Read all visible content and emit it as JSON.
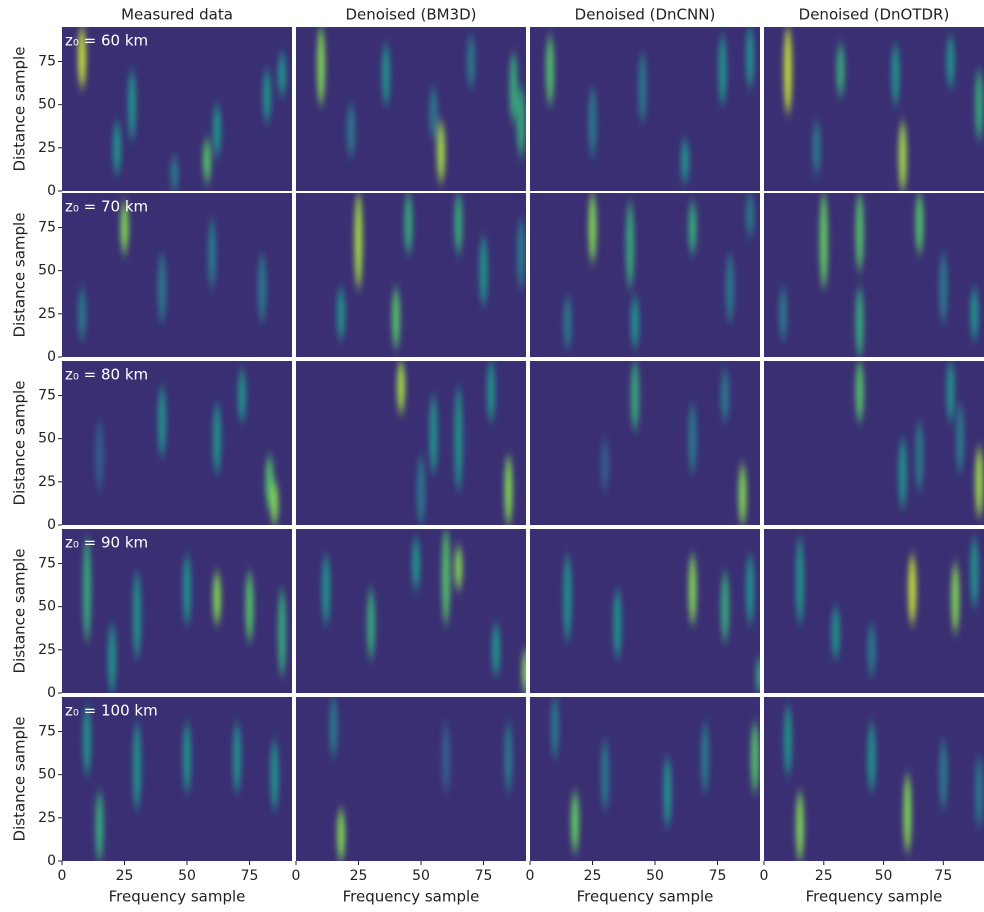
{
  "chart_data": {
    "type": "heatmap",
    "column_titles": [
      "Measured data",
      "Denoised (BM3D)",
      "Denoised (DnCNN)",
      "Denoised (DnOTDR)"
    ],
    "row_labels": [
      "z₀ = 60 km",
      "z₀ = 70 km",
      "z₀ = 80 km",
      "z₀ = 90 km",
      "z₀ = 100 km"
    ],
    "xlabel": "Frequency sample",
    "ylabel": "Distance sample",
    "xlim": [
      0,
      92
    ],
    "ylim": [
      0,
      95
    ],
    "xticks": [
      0,
      25,
      50,
      75
    ],
    "yticks": [
      0,
      25,
      50,
      75
    ],
    "colormap": "viridis",
    "panels": [
      [
        [
          [
            8,
            60,
            95,
            0.9
          ],
          [
            28,
            30,
            70,
            0.5
          ],
          [
            22,
            10,
            40,
            0.5
          ],
          [
            58,
            5,
            30,
            0.7
          ],
          [
            62,
            20,
            50,
            0.5
          ],
          [
            82,
            40,
            70,
            0.5
          ],
          [
            88,
            55,
            80,
            0.5
          ],
          [
            45,
            0,
            20,
            0.4
          ]
        ],
        [
          [
            10,
            50,
            95,
            0.8
          ],
          [
            22,
            20,
            50,
            0.4
          ],
          [
            36,
            50,
            85,
            0.5
          ],
          [
            55,
            30,
            60,
            0.4
          ],
          [
            58,
            5,
            40,
            0.85
          ],
          [
            87,
            40,
            80,
            0.6
          ],
          [
            90,
            20,
            60,
            0.6
          ],
          [
            70,
            60,
            90,
            0.4
          ]
        ],
        [
          [
            8,
            50,
            90,
            0.7
          ],
          [
            25,
            20,
            60,
            0.4
          ],
          [
            45,
            40,
            80,
            0.4
          ],
          [
            62,
            5,
            30,
            0.5
          ],
          [
            77,
            50,
            90,
            0.5
          ],
          [
            88,
            60,
            95,
            0.5
          ]
        ],
        [
          [
            10,
            45,
            95,
            0.9
          ],
          [
            32,
            55,
            85,
            0.6
          ],
          [
            22,
            10,
            40,
            0.4
          ],
          [
            55,
            50,
            85,
            0.5
          ],
          [
            58,
            0,
            40,
            0.85
          ],
          [
            78,
            60,
            90,
            0.5
          ],
          [
            90,
            30,
            70,
            0.6
          ]
        ]
      ],
      [
        [
          [
            25,
            60,
            90,
            0.8
          ],
          [
            40,
            20,
            60,
            0.4
          ],
          [
            60,
            40,
            80,
            0.4
          ],
          [
            8,
            10,
            40,
            0.4
          ],
          [
            80,
            20,
            60,
            0.4
          ]
        ],
        [
          [
            25,
            40,
            95,
            0.85
          ],
          [
            40,
            5,
            40,
            0.7
          ],
          [
            18,
            10,
            40,
            0.5
          ],
          [
            45,
            60,
            95,
            0.6
          ],
          [
            65,
            60,
            95,
            0.6
          ],
          [
            75,
            30,
            70,
            0.5
          ],
          [
            90,
            40,
            80,
            0.4
          ]
        ],
        [
          [
            25,
            55,
            95,
            0.8
          ],
          [
            40,
            40,
            90,
            0.6
          ],
          [
            15,
            5,
            35,
            0.4
          ],
          [
            42,
            5,
            35,
            0.5
          ],
          [
            65,
            60,
            90,
            0.6
          ],
          [
            80,
            20,
            60,
            0.4
          ],
          [
            88,
            70,
            95,
            0.4
          ]
        ],
        [
          [
            25,
            40,
            95,
            0.75
          ],
          [
            40,
            50,
            95,
            0.7
          ],
          [
            40,
            0,
            40,
            0.6
          ],
          [
            65,
            60,
            95,
            0.7
          ],
          [
            75,
            20,
            60,
            0.4
          ],
          [
            88,
            10,
            40,
            0.5
          ],
          [
            8,
            10,
            40,
            0.4
          ]
        ]
      ],
      [
        [
          [
            40,
            40,
            80,
            0.5
          ],
          [
            62,
            30,
            70,
            0.5
          ],
          [
            72,
            60,
            90,
            0.5
          ],
          [
            83,
            10,
            40,
            0.7
          ],
          [
            85,
            0,
            25,
            0.8
          ],
          [
            15,
            20,
            60,
            0.3
          ]
        ],
        [
          [
            42,
            65,
            95,
            0.85
          ],
          [
            55,
            30,
            75,
            0.5
          ],
          [
            65,
            20,
            80,
            0.5
          ],
          [
            78,
            60,
            95,
            0.5
          ],
          [
            85,
            0,
            40,
            0.8
          ],
          [
            50,
            0,
            40,
            0.4
          ]
        ],
        [
          [
            42,
            55,
            95,
            0.6
          ],
          [
            65,
            30,
            70,
            0.4
          ],
          [
            78,
            60,
            90,
            0.4
          ],
          [
            85,
            0,
            35,
            0.8
          ],
          [
            30,
            20,
            50,
            0.3
          ]
        ],
        [
          [
            40,
            60,
            95,
            0.7
          ],
          [
            58,
            10,
            50,
            0.5
          ],
          [
            78,
            60,
            95,
            0.5
          ],
          [
            82,
            30,
            70,
            0.4
          ],
          [
            90,
            5,
            45,
            0.85
          ],
          [
            65,
            20,
            60,
            0.4
          ]
        ]
      ],
      [
        [
          [
            10,
            30,
            90,
            0.6
          ],
          [
            30,
            20,
            70,
            0.5
          ],
          [
            50,
            40,
            80,
            0.5
          ],
          [
            62,
            40,
            70,
            0.8
          ],
          [
            75,
            30,
            70,
            0.7
          ],
          [
            88,
            10,
            60,
            0.6
          ],
          [
            20,
            0,
            40,
            0.5
          ]
        ],
        [
          [
            12,
            40,
            80,
            0.5
          ],
          [
            30,
            20,
            60,
            0.6
          ],
          [
            60,
            40,
            95,
            0.7
          ],
          [
            65,
            60,
            85,
            0.8
          ],
          [
            80,
            10,
            40,
            0.5
          ],
          [
            92,
            0,
            25,
            0.8
          ],
          [
            48,
            60,
            90,
            0.5
          ]
        ],
        [
          [
            15,
            30,
            80,
            0.5
          ],
          [
            35,
            20,
            60,
            0.5
          ],
          [
            65,
            40,
            80,
            0.8
          ],
          [
            78,
            30,
            70,
            0.6
          ],
          [
            88,
            40,
            80,
            0.5
          ],
          [
            92,
            0,
            20,
            0.6
          ]
        ],
        [
          [
            15,
            40,
            90,
            0.5
          ],
          [
            30,
            20,
            50,
            0.5
          ],
          [
            62,
            40,
            80,
            0.9
          ],
          [
            80,
            35,
            75,
            0.8
          ],
          [
            88,
            50,
            90,
            0.5
          ],
          [
            45,
            10,
            40,
            0.4
          ]
        ]
      ],
      [
        [
          [
            15,
            0,
            40,
            0.6
          ],
          [
            30,
            30,
            80,
            0.5
          ],
          [
            50,
            40,
            80,
            0.5
          ],
          [
            70,
            40,
            80,
            0.5
          ],
          [
            85,
            30,
            70,
            0.5
          ],
          [
            10,
            50,
            90,
            0.5
          ]
        ],
        [
          [
            18,
            0,
            30,
            0.8
          ],
          [
            15,
            60,
            95,
            0.4
          ],
          [
            60,
            40,
            80,
            0.3
          ],
          [
            85,
            40,
            80,
            0.4
          ]
        ],
        [
          [
            18,
            5,
            40,
            0.75
          ],
          [
            30,
            30,
            70,
            0.4
          ],
          [
            55,
            20,
            60,
            0.5
          ],
          [
            70,
            40,
            80,
            0.4
          ],
          [
            90,
            40,
            80,
            0.7
          ],
          [
            10,
            60,
            95,
            0.4
          ]
        ],
        [
          [
            15,
            0,
            40,
            0.8
          ],
          [
            10,
            50,
            90,
            0.5
          ],
          [
            45,
            40,
            80,
            0.5
          ],
          [
            60,
            5,
            50,
            0.8
          ],
          [
            75,
            30,
            70,
            0.4
          ],
          [
            90,
            20,
            60,
            0.4
          ]
        ]
      ]
    ]
  }
}
